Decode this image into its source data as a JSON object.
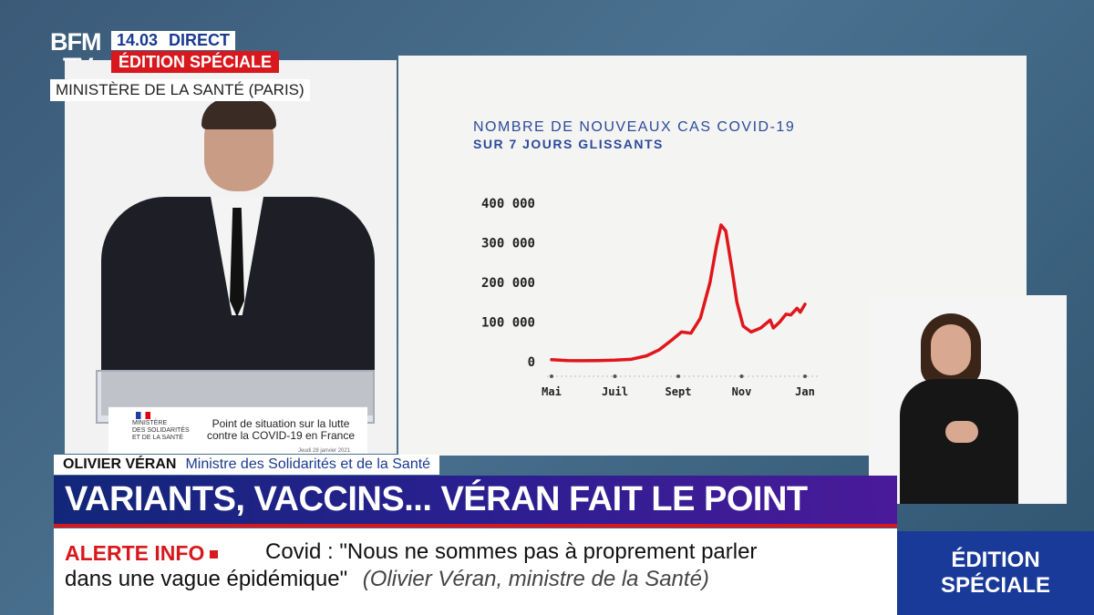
{
  "channel": {
    "logo_top": "BFM",
    "logo_bottom": "TV.",
    "time": "14.03",
    "live": "DIRECT",
    "edition": "ÉDITION SPÉCIALE",
    "location": "MINISTÈRE DE LA SANTÉ (PARIS)"
  },
  "lectern_sign": {
    "ministry_lines": [
      "MINISTÈRE",
      "DES SOLIDARITÉS",
      "ET DE LA SANTÉ"
    ],
    "title_line1": "Point de situation sur la lutte",
    "title_line2": "contre la COVID-19 en France",
    "date": "Jeudi 28 janvier 2021"
  },
  "chart_data": {
    "type": "line",
    "title": "NOMBRE DE NOUVEAUX CAS COVID-19",
    "subtitle": "SUR 7 JOURS GLISSANTS",
    "xlabel": "",
    "ylabel": "",
    "ylim": [
      0,
      400000
    ],
    "y_ticks": [
      "400 000",
      "300 000",
      "200 000",
      "100 000",
      "0"
    ],
    "y_tick_values": [
      400000,
      300000,
      200000,
      100000,
      0
    ],
    "x_ticks": [
      "Mai",
      "Juil",
      "Sept",
      "Nov",
      "Jan"
    ],
    "x_tick_values": [
      0,
      2,
      4,
      6,
      8
    ],
    "series": [
      {
        "color": "#e0161b",
        "x": [
          0,
          0.5,
          1,
          1.5,
          2,
          2.5,
          3,
          3.4,
          3.8,
          4.1,
          4.4,
          4.7,
          5.0,
          5.2,
          5.35,
          5.5,
          5.7,
          5.85,
          6.05,
          6.3,
          6.6,
          6.9,
          7.0,
          7.2,
          7.4,
          7.55,
          7.75,
          7.85,
          8.0
        ],
        "y": [
          5000,
          3000,
          2500,
          3000,
          4000,
          6000,
          15000,
          30000,
          55000,
          75000,
          72000,
          110000,
          200000,
          290000,
          345000,
          330000,
          230000,
          150000,
          90000,
          75000,
          85000,
          105000,
          85000,
          100000,
          120000,
          118000,
          135000,
          125000,
          145000
        ]
      }
    ]
  },
  "lower_third": {
    "name": "OLIVIER VÉRAN",
    "role": "Ministre des Solidarités et de la Santé",
    "headline": "VARIANTS, VACCINS... VÉRAN FAIT LE POINT",
    "alert": "ALERTE INFO",
    "ticker_line1": "Covid : \"Nous ne sommes pas à proprement parler",
    "ticker_line2_quote": "dans une vague épidémique\"",
    "ticker_line2_source": "(Olivier Véran, ministre de la Santé)",
    "corner_line1": "ÉDITION",
    "corner_line2": "SPÉCIALE"
  }
}
